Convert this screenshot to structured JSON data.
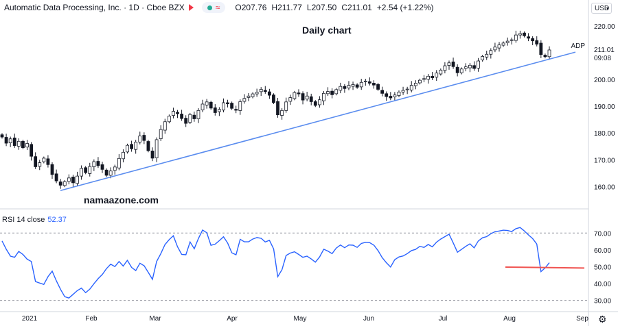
{
  "header": {
    "symbol_name": "Automatic Data Processing, Inc.",
    "interval": "1D",
    "exchange": "Cboe BZX",
    "ohlc": [
      {
        "label": "O",
        "value": "207.76"
      },
      {
        "label": "H",
        "value": "211.77"
      },
      {
        "label": "L",
        "value": "207.50"
      },
      {
        "label": "C",
        "value": "211.01"
      }
    ],
    "change": "+2.54 (+1.22%)",
    "currency_button": "USD"
  },
  "chart_title": "Daily chart",
  "watermark": "namaazone.com",
  "price_label": {
    "ticker": "ADP",
    "price": "211.01",
    "countdown": "09:08"
  },
  "colors": {
    "trendline": "#5b8def",
    "rsi_line": "#2962ff",
    "support_line": "#f05350",
    "tag_bg": "#131722"
  },
  "rsi_panel": {
    "label": "RSI 14 close",
    "value": "52.37"
  },
  "chart_data": [
    {
      "type": "candlestick",
      "title": "Daily chart",
      "x_ticks": [
        "2021",
        "Feb",
        "Mar",
        "Apr",
        "May",
        "Jun",
        "Jul",
        "Aug",
        "Sep"
      ],
      "y_ticks": [
        "220.00",
        "210.00",
        "200.00",
        "190.00",
        "180.00",
        "170.00",
        "160.00"
      ],
      "ylim": [
        156,
        222
      ],
      "last_close": 211.01,
      "trendline": {
        "from": {
          "date": "2021-01-15",
          "value": 158.5
        },
        "to": {
          "date": "2021-08-27",
          "value": 210.2
        }
      },
      "closes": [
        178.5,
        176.2,
        177.8,
        175.3,
        176.9,
        174.5,
        176.1,
        171.3,
        167.4,
        168.9,
        170.6,
        168.2,
        164.5,
        162.1,
        160.5,
        161.8,
        163.2,
        161.4,
        163.9,
        166.8,
        165.2,
        167.5,
        169.3,
        167.8,
        166.4,
        164.2,
        165.8,
        167.3,
        170.5,
        172.8,
        175.4,
        174.1,
        176.6,
        178.9,
        177.2,
        173.4,
        170.6,
        177.5,
        181.3,
        184.2,
        186.3,
        188.1,
        187.2,
        185.4,
        183.6,
        186.9,
        185.3,
        188.4,
        190.8,
        191.6,
        189.3,
        187.6,
        188.8,
        191.3,
        190.9,
        189.2,
        188.5,
        191.7,
        192.9,
        193.8,
        194.6,
        195.2,
        196.3,
        195.5,
        194.1,
        191.4,
        186.8,
        188.4,
        191.6,
        193.2,
        195.1,
        194.6,
        192.3,
        193.8,
        191.7,
        190.3,
        192.4,
        194.8,
        195.5,
        194.3,
        196.2,
        197.4,
        196.6,
        197.8,
        198.1,
        197.1,
        198.9,
        199.4,
        198.6,
        197.9,
        196.3,
        194.8,
        193.6,
        193.1,
        194.2,
        195.3,
        195.9,
        196.4,
        197.8,
        198.6,
        199.7,
        200.3,
        201.2,
        200.6,
        202.4,
        203.5,
        205.1,
        206.2,
        204.8,
        202.5,
        203.9,
        204.7,
        205.3,
        204.1,
        206.9,
        208.6,
        209.4,
        210.8,
        212.1,
        212.9,
        213.6,
        214.3,
        214.8,
        216.6,
        217.1,
        216.3,
        215.4,
        214.4,
        213.2,
        209.3,
        208.5,
        211.01
      ]
    },
    {
      "type": "line",
      "title": "RSI 14 close",
      "ylim": [
        27,
        75
      ],
      "y_ticks": [
        "70.00",
        "60.00",
        "50.00",
        "40.00",
        "30.00"
      ],
      "bands": [
        70,
        30
      ],
      "support_line": {
        "from": {
          "date": "2021-08-01",
          "value": 49.8
        },
        "to": {
          "date": "2021-08-31",
          "value": 49.2
        }
      },
      "values": [
        65.3,
        60.4,
        56.3,
        55.6,
        59.1,
        57.3,
        54.5,
        53.1,
        41.2,
        40.3,
        39.5,
        44.1,
        47.4,
        41.6,
        36.5,
        32.2,
        31.4,
        33.6,
        35.8,
        37.3,
        34.6,
        36.7,
        39.9,
        42.9,
        45.4,
        48.9,
        51.5,
        50.1,
        53.1,
        50.4,
        53.8,
        49.6,
        47.7,
        52.1,
        50.6,
        46.7,
        42.5,
        53.1,
        57.8,
        63.2,
        66.1,
        68.4,
        61.9,
        57.3,
        57.1,
        64.7,
        60.7,
        66.7,
        71.8,
        70.2,
        62.7,
        63.4,
        65.5,
        67.8,
        64.1,
        58.3,
        57.1,
        66.3,
        64.8,
        64.8,
        66.4,
        67.3,
        66.9,
        64.7,
        65.7,
        60.6,
        44.1,
        48.2,
        56.7,
        58.1,
        58.9,
        57.3,
        55.6,
        56.3,
        54.6,
        52.7,
        55.8,
        60.4,
        59.3,
        57.8,
        61.1,
        62.9,
        61.3,
        62.9,
        62.8,
        61.5,
        63.8,
        64.5,
        64.3,
        62.8,
        59.6,
        55.4,
        52.4,
        49.8,
        54.2,
        55.8,
        56.4,
        57.8,
        59.6,
        60.3,
        62.1,
        61.5,
        63.2,
        61.8,
        64.6,
        66.4,
        67.9,
        69.3,
        64.1,
        58.6,
        60.3,
        62.1,
        63.6,
        61.2,
        65.3,
        67.2,
        67.9,
        69.6,
        70.8,
        71.2,
        71.7,
        71.5,
        70.9,
        72.6,
        73.3,
        71.3,
        68.9,
        66.7,
        63.5,
        47.1,
        49.3,
        52.37
      ]
    }
  ]
}
